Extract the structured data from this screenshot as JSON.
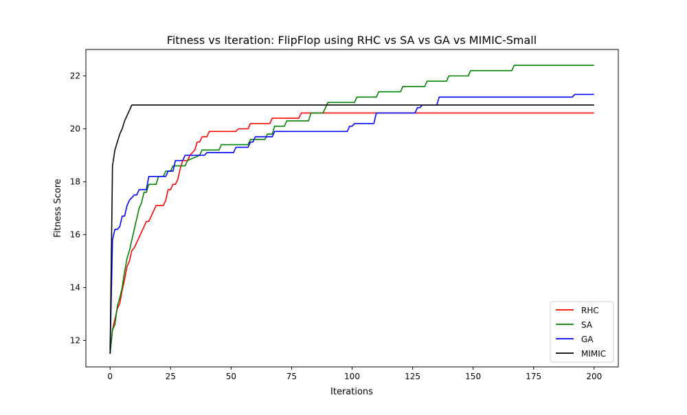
{
  "chart_data": {
    "type": "line",
    "title": "Fitness vs Iteration: FlipFlop using RHC vs SA vs GA vs MIMIC-Small",
    "xlabel": "Iterations",
    "ylabel": "Fitness Score",
    "xlim": [
      -10,
      210
    ],
    "ylim": [
      11,
      23
    ],
    "xticks": [
      0,
      25,
      50,
      75,
      100,
      125,
      150,
      175,
      200
    ],
    "yticks": [
      12,
      14,
      16,
      18,
      20,
      22
    ],
    "grid": false,
    "legend_position": "bottom-right",
    "series": [
      {
        "name": "RHC",
        "color": "#ff0000",
        "points": [
          [
            0,
            11.5
          ],
          [
            1,
            12.4
          ],
          [
            2,
            12.8
          ],
          [
            3,
            13.2
          ],
          [
            4,
            13.4
          ],
          [
            5,
            13.9
          ],
          [
            6,
            14.3
          ],
          [
            7,
            14.8
          ],
          [
            8,
            15.0
          ],
          [
            9,
            15.4
          ],
          [
            10,
            15.5
          ],
          [
            11,
            15.7
          ],
          [
            12,
            15.9
          ],
          [
            13,
            16.1
          ],
          [
            14,
            16.3
          ],
          [
            15,
            16.5
          ],
          [
            16,
            16.5
          ],
          [
            17,
            16.7
          ],
          [
            18,
            16.9
          ],
          [
            19,
            17.1
          ],
          [
            22,
            17.1
          ],
          [
            23,
            17.3
          ],
          [
            24,
            17.7
          ],
          [
            25,
            17.7
          ],
          [
            26,
            17.9
          ],
          [
            27,
            17.9
          ],
          [
            28,
            18.1
          ],
          [
            29,
            18.5
          ],
          [
            30,
            18.8
          ],
          [
            32,
            18.8
          ],
          [
            33,
            19.0
          ],
          [
            35,
            19.2
          ],
          [
            36,
            19.5
          ],
          [
            37,
            19.5
          ],
          [
            38,
            19.7
          ],
          [
            40,
            19.7
          ],
          [
            41,
            19.9
          ],
          [
            52,
            19.9
          ],
          [
            53,
            20.0
          ],
          [
            57,
            20.0
          ],
          [
            58,
            20.2
          ],
          [
            66,
            20.2
          ],
          [
            67,
            20.4
          ],
          [
            78,
            20.4
          ],
          [
            79,
            20.6
          ],
          [
            200,
            20.6
          ]
        ]
      },
      {
        "name": "SA",
        "color": "#008000",
        "points": [
          [
            0,
            11.5
          ],
          [
            1,
            12.4
          ],
          [
            2,
            12.6
          ],
          [
            3,
            13.3
          ],
          [
            4,
            13.6
          ],
          [
            5,
            14.0
          ],
          [
            6,
            14.6
          ],
          [
            7,
            15.1
          ],
          [
            8,
            15.4
          ],
          [
            9,
            15.8
          ],
          [
            10,
            16.2
          ],
          [
            11,
            16.6
          ],
          [
            12,
            17.0
          ],
          [
            13,
            17.2
          ],
          [
            14,
            17.6
          ],
          [
            15,
            17.6
          ],
          [
            16,
            17.9
          ],
          [
            19,
            17.9
          ],
          [
            20,
            18.2
          ],
          [
            22,
            18.2
          ],
          [
            23,
            18.4
          ],
          [
            25,
            18.4
          ],
          [
            26,
            18.6
          ],
          [
            31,
            18.6
          ],
          [
            32,
            18.8
          ],
          [
            37,
            19.0
          ],
          [
            38,
            19.2
          ],
          [
            45,
            19.2
          ],
          [
            46,
            19.4
          ],
          [
            57,
            19.4
          ],
          [
            58,
            19.6
          ],
          [
            64,
            19.6
          ],
          [
            65,
            19.8
          ],
          [
            67,
            19.8
          ],
          [
            68,
            20.1
          ],
          [
            72,
            20.1
          ],
          [
            73,
            20.3
          ],
          [
            82,
            20.3
          ],
          [
            83,
            20.6
          ],
          [
            88,
            20.6
          ],
          [
            90,
            21.0
          ],
          [
            101,
            21.0
          ],
          [
            102,
            21.2
          ],
          [
            110,
            21.2
          ],
          [
            111,
            21.4
          ],
          [
            120,
            21.4
          ],
          [
            121,
            21.6
          ],
          [
            130,
            21.6
          ],
          [
            131,
            21.8
          ],
          [
            139,
            21.8
          ],
          [
            140,
            22.0
          ],
          [
            148,
            22.0
          ],
          [
            149,
            22.2
          ],
          [
            166,
            22.2
          ],
          [
            167,
            22.4
          ],
          [
            200,
            22.4
          ]
        ]
      },
      {
        "name": "GA",
        "color": "#0000ff",
        "points": [
          [
            0,
            11.5
          ],
          [
            1,
            15.8
          ],
          [
            2,
            16.2
          ],
          [
            3,
            16.2
          ],
          [
            4,
            16.3
          ],
          [
            5,
            16.7
          ],
          [
            6,
            16.7
          ],
          [
            7,
            17.1
          ],
          [
            8,
            17.3
          ],
          [
            9,
            17.4
          ],
          [
            10,
            17.5
          ],
          [
            11,
            17.5
          ],
          [
            12,
            17.7
          ],
          [
            15,
            17.7
          ],
          [
            16,
            18.2
          ],
          [
            23,
            18.2
          ],
          [
            24,
            18.4
          ],
          [
            26,
            18.4
          ],
          [
            27,
            18.8
          ],
          [
            30,
            18.8
          ],
          [
            31,
            19.0
          ],
          [
            39,
            19.0
          ],
          [
            40,
            19.1
          ],
          [
            51,
            19.1
          ],
          [
            52,
            19.3
          ],
          [
            57,
            19.3
          ],
          [
            58,
            19.5
          ],
          [
            59,
            19.5
          ],
          [
            60,
            19.7
          ],
          [
            67,
            19.7
          ],
          [
            68,
            19.9
          ],
          [
            98,
            19.9
          ],
          [
            99,
            20.1
          ],
          [
            100,
            20.1
          ],
          [
            101,
            20.2
          ],
          [
            109,
            20.2
          ],
          [
            110,
            20.6
          ],
          [
            126,
            20.6
          ],
          [
            127,
            20.8
          ],
          [
            128,
            20.8
          ],
          [
            129,
            20.9
          ],
          [
            135,
            20.9
          ],
          [
            136,
            21.2
          ],
          [
            191,
            21.2
          ],
          [
            192,
            21.3
          ],
          [
            200,
            21.3
          ]
        ]
      },
      {
        "name": "MIMIC",
        "color": "#000000",
        "points": [
          [
            0,
            11.5
          ],
          [
            1,
            18.6
          ],
          [
            2,
            19.2
          ],
          [
            3,
            19.5
          ],
          [
            4,
            19.8
          ],
          [
            5,
            20.0
          ],
          [
            6,
            20.3
          ],
          [
            7,
            20.5
          ],
          [
            8,
            20.7
          ],
          [
            9,
            20.9
          ],
          [
            200,
            20.9
          ]
        ]
      }
    ]
  }
}
